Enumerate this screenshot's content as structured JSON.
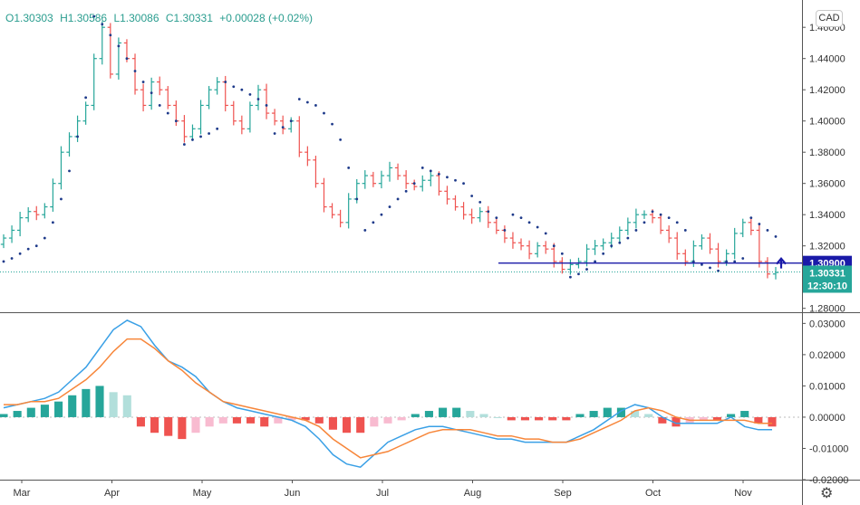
{
  "header": {
    "open": "O1.30303",
    "high": "H1.30586",
    "low": "L1.30086",
    "close": "C1.30331",
    "change": "+0.00028 (+0.02%)",
    "currency_button": "CAD"
  },
  "badges": {
    "level_line": "1.30900",
    "last_price": "1.30331",
    "countdown": "12:30:10"
  },
  "colors": {
    "up": "#26a69a",
    "down": "#ef5350",
    "sar": "#1e3a8a",
    "level_line": "#1a1aa8",
    "macd_line": "#3aa0e6",
    "signal_line": "#f7863a",
    "hist_up_strong": "#26a69a",
    "hist_up_weak": "#b2dfdb",
    "hist_down_strong": "#ef5350",
    "hist_down_weak": "#f8bbd0",
    "last_price_badge": "#26a69a",
    "level_badge": "#1a1aa8"
  },
  "icons": {
    "settings": "gear-icon",
    "level_arrow": "arrow-up-icon"
  },
  "chart_data": [
    {
      "type": "candlestick",
      "title": "",
      "x_ticks": [
        "Mar",
        "Apr",
        "May",
        "Jun",
        "Jul",
        "Aug",
        "Sep",
        "Oct",
        "Nov"
      ],
      "y_ticks": [
        "1.28000",
        "1.30000",
        "1.32000",
        "1.34000",
        "1.36000",
        "1.38000",
        "1.40000",
        "1.42000",
        "1.44000",
        "1.46000"
      ],
      "ylim": [
        1.2775,
        1.4775
      ],
      "horizontal_line": 1.309,
      "last_price": 1.30331,
      "close_series": [
        1.325,
        1.33,
        1.338,
        1.342,
        1.34,
        1.345,
        1.36,
        1.38,
        1.39,
        1.4,
        1.41,
        1.44,
        1.46,
        1.43,
        1.45,
        1.44,
        1.42,
        1.41,
        1.425,
        1.42,
        1.41,
        1.4,
        1.39,
        1.395,
        1.41,
        1.42,
        1.425,
        1.41,
        1.4,
        1.395,
        1.41,
        1.42,
        1.405,
        1.4,
        1.395,
        1.4,
        1.38,
        1.375,
        1.36,
        1.345,
        1.34,
        1.335,
        1.35,
        1.36,
        1.365,
        1.36,
        1.365,
        1.37,
        1.365,
        1.36,
        1.358,
        1.362,
        1.365,
        1.355,
        1.35,
        1.345,
        1.34,
        1.338,
        1.342,
        1.335,
        1.33,
        1.325,
        1.322,
        1.32,
        1.315,
        1.32,
        1.318,
        1.31,
        1.305,
        1.308,
        1.31,
        1.318,
        1.32,
        1.322,
        1.325,
        1.33,
        1.335,
        1.34,
        1.34,
        1.338,
        1.33,
        1.325,
        1.315,
        1.31,
        1.32,
        1.325,
        1.318,
        1.31,
        1.315,
        1.328,
        1.335,
        1.33,
        1.31,
        1.302,
        1.303
      ],
      "parabolic_sar": [
        1.31,
        1.312,
        1.315,
        1.318,
        1.32,
        1.325,
        1.335,
        1.35,
        1.368,
        1.39,
        1.415,
        1.467,
        1.462,
        1.455,
        1.448,
        1.44,
        1.432,
        1.425,
        1.418,
        1.41,
        1.405,
        1.4,
        1.385,
        1.388,
        1.39,
        1.392,
        1.395,
        1.425,
        1.422,
        1.42,
        1.417,
        1.414,
        1.41,
        1.392,
        1.396,
        1.4,
        1.414,
        1.412,
        1.41,
        1.405,
        1.398,
        1.388,
        1.37,
        1.35,
        1.33,
        1.335,
        1.34,
        1.345,
        1.35,
        1.355,
        1.36,
        1.37,
        1.368,
        1.366,
        1.364,
        1.362,
        1.36,
        1.352,
        1.348,
        1.342,
        1.338,
        1.33,
        1.34,
        1.338,
        1.335,
        1.332,
        1.328,
        1.32,
        1.315,
        1.3,
        1.302,
        1.305,
        1.31,
        1.315,
        1.32,
        1.322,
        1.325,
        1.33,
        1.335,
        1.342,
        1.34,
        1.338,
        1.335,
        1.33,
        1.31,
        1.308,
        1.306,
        1.304,
        1.31,
        1.31,
        1.312,
        1.338,
        1.334,
        1.33,
        1.326
      ]
    },
    {
      "type": "line",
      "title": "",
      "y_ticks": [
        "-0.02000",
        "-0.01000",
        "0.00000",
        "0.01000",
        "0.02000",
        "0.03000"
      ],
      "ylim": [
        -0.02,
        0.033
      ],
      "series": [
        {
          "name": "",
          "values": [
            0.003,
            0.004,
            0.005,
            0.006,
            0.008,
            0.012,
            0.016,
            0.022,
            0.028,
            0.031,
            0.029,
            0.023,
            0.018,
            0.016,
            0.013,
            0.008,
            0.005,
            0.003,
            0.002,
            0.001,
            0.0,
            -0.001,
            -0.003,
            -0.007,
            -0.012,
            -0.015,
            -0.016,
            -0.012,
            -0.008,
            -0.006,
            -0.004,
            -0.003,
            -0.003,
            -0.004,
            -0.005,
            -0.006,
            -0.007,
            -0.007,
            -0.008,
            -0.008,
            -0.008,
            -0.008,
            -0.006,
            -0.004,
            -0.001,
            0.002,
            0.004,
            0.003,
            0.0,
            -0.002,
            -0.002,
            -0.002,
            -0.002,
            0.0,
            -0.003,
            -0.004,
            -0.004
          ]
        },
        {
          "name": "",
          "values": [
            0.004,
            0.004,
            0.005,
            0.005,
            0.006,
            0.009,
            0.012,
            0.016,
            0.021,
            0.025,
            0.025,
            0.022,
            0.018,
            0.015,
            0.011,
            0.008,
            0.005,
            0.004,
            0.003,
            0.002,
            0.001,
            0.0,
            -0.001,
            -0.003,
            -0.007,
            -0.01,
            -0.013,
            -0.012,
            -0.011,
            -0.009,
            -0.007,
            -0.005,
            -0.004,
            -0.004,
            -0.004,
            -0.005,
            -0.006,
            -0.006,
            -0.007,
            -0.007,
            -0.008,
            -0.008,
            -0.007,
            -0.005,
            -0.003,
            -0.001,
            0.002,
            0.003,
            0.002,
            0.0,
            -0.001,
            -0.001,
            -0.001,
            -0.001,
            -0.001,
            -0.002,
            -0.002
          ]
        }
      ],
      "histogram": [
        0.001,
        0.002,
        0.003,
        0.004,
        0.005,
        0.007,
        0.009,
        0.01,
        0.008,
        0.007,
        -0.003,
        -0.005,
        -0.006,
        -0.007,
        -0.005,
        -0.003,
        -0.002,
        -0.002,
        -0.002,
        -0.003,
        -0.002,
        -0.001,
        -0.001,
        -0.002,
        -0.004,
        -0.005,
        -0.005,
        -0.003,
        -0.002,
        -0.001,
        0.001,
        0.002,
        0.003,
        0.003,
        0.002,
        0.001,
        0.0,
        -0.001,
        -0.001,
        -0.001,
        -0.001,
        -0.001,
        0.001,
        0.002,
        0.003,
        0.003,
        0.002,
        0.001,
        -0.002,
        -0.003,
        -0.002,
        -0.001,
        -0.001,
        0.001,
        0.002,
        -0.002,
        -0.003
      ]
    }
  ]
}
